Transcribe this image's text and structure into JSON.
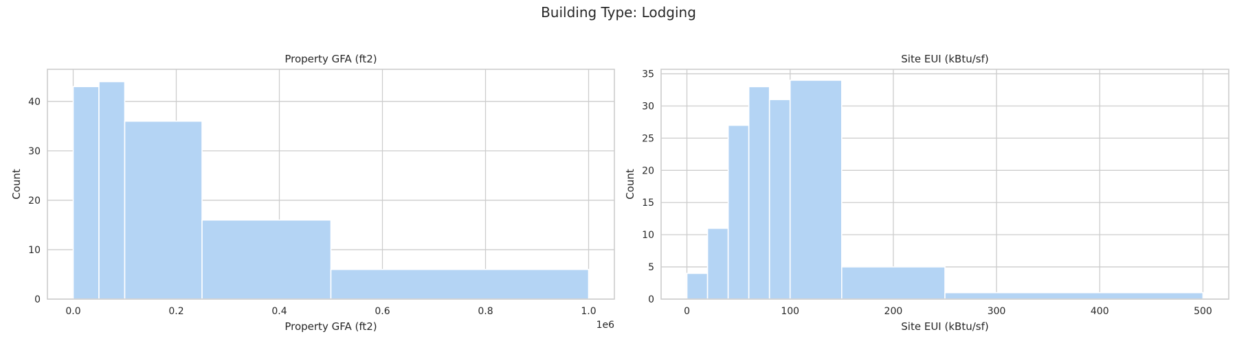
{
  "suptitle": "Building Type: Lodging",
  "colors": {
    "bar": "#b4d4f4",
    "grid": "#cccccc",
    "frame": "#cccccc"
  },
  "chart_data": [
    {
      "type": "bar",
      "subtype": "histogram",
      "title": "Property GFA (ft2)",
      "xlabel": "Property GFA (ft2)",
      "ylabel": "Count",
      "offset_text": "1e6",
      "xlim": [
        -0.05,
        1.05
      ],
      "ylim": [
        0,
        46.5
      ],
      "xticks": [
        0.0,
        0.2,
        0.4,
        0.6,
        0.8,
        1.0
      ],
      "xtick_labels": [
        "0.0",
        "0.2",
        "0.4",
        "0.6",
        "0.8",
        "1.0"
      ],
      "yticks": [
        0,
        10,
        20,
        30,
        40
      ],
      "ytick_labels": [
        "0",
        "10",
        "20",
        "30",
        "40"
      ],
      "bins": [
        {
          "x0": 0.0,
          "x1": 0.05,
          "count": 43
        },
        {
          "x0": 0.05,
          "x1": 0.1,
          "count": 44
        },
        {
          "x0": 0.1,
          "x1": 0.25,
          "count": 36
        },
        {
          "x0": 0.25,
          "x1": 0.5,
          "count": 16
        },
        {
          "x0": 0.5,
          "x1": 1.0,
          "count": 6
        }
      ],
      "grid": true
    },
    {
      "type": "bar",
      "subtype": "histogram",
      "title": "Site EUI (kBtu/sf)",
      "xlabel": "Site EUI (kBtu/sf)",
      "ylabel": "Count",
      "xlim": [
        -25,
        525
      ],
      "ylim": [
        0,
        35.7
      ],
      "xticks": [
        0,
        100,
        200,
        300,
        400,
        500
      ],
      "xtick_labels": [
        "0",
        "100",
        "200",
        "300",
        "400",
        "500"
      ],
      "yticks": [
        0,
        5,
        10,
        15,
        20,
        25,
        30,
        35
      ],
      "ytick_labels": [
        "0",
        "5",
        "10",
        "15",
        "20",
        "25",
        "30",
        "35"
      ],
      "bins": [
        {
          "x0": 0,
          "x1": 20,
          "count": 4
        },
        {
          "x0": 20,
          "x1": 40,
          "count": 11
        },
        {
          "x0": 40,
          "x1": 60,
          "count": 27
        },
        {
          "x0": 60,
          "x1": 80,
          "count": 33
        },
        {
          "x0": 80,
          "x1": 100,
          "count": 31
        },
        {
          "x0": 100,
          "x1": 150,
          "count": 34
        },
        {
          "x0": 150,
          "x1": 250,
          "count": 5
        },
        {
          "x0": 250,
          "x1": 500,
          "count": 1
        }
      ],
      "grid": true
    }
  ]
}
